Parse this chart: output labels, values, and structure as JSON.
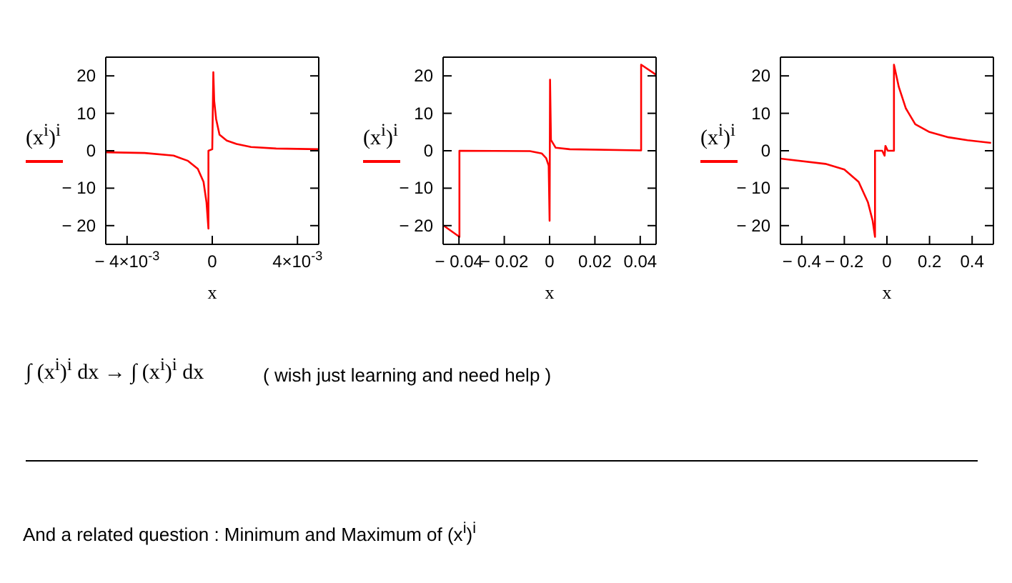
{
  "chart_data": [
    {
      "type": "line",
      "ylabel": "(x$^{i}$)$^{i}$",
      "xlabel": "x",
      "marker": "none",
      "xlim": [
        -0.005,
        0.005
      ],
      "ylim": [
        -25,
        25
      ],
      "xticks": [
        {
          "value": -0.004,
          "label": "− 4×10$^{-3}$"
        },
        0,
        {
          "value": 0.004,
          "label": "4×10$^{-3}$"
        }
      ],
      "yticks": [
        -20,
        -10,
        0,
        10,
        20
      ],
      "series": [
        {
          "color": "#ff0000",
          "x": [
            -0.005,
            -0.00318,
            -0.00182,
            -0.00114,
            -0.00068,
            -0.00041,
            -0.00027,
            -0.00018,
            -0.00018,
            0,
            5e-05,
            9e-05,
            0.00018,
            0.00034,
            0.00068,
            0.00114,
            0.00182,
            0.003,
            0.005
          ],
          "values": [
            -0.4,
            -0.6,
            -1.3,
            -2.7,
            -4.8,
            -8.3,
            -13.8,
            -20.8,
            0,
            0.4,
            21,
            13.4,
            8.5,
            4.3,
            2.7,
            1.8,
            1.0,
            0.6,
            0.4
          ]
        }
      ]
    },
    {
      "type": "line",
      "ylabel": "(x$^{i}$)$^{i}$",
      "xlabel": "x",
      "marker": "none",
      "xlim": [
        -0.047,
        0.047
      ],
      "ylim": [
        -25,
        25
      ],
      "xticks": [
        {
          "value": -0.04,
          "label": "− 0.04"
        },
        {
          "value": -0.02,
          "label": "− 0.02"
        },
        0,
        0.02,
        0.04
      ],
      "yticks": [
        -20,
        -10,
        0,
        10,
        20
      ],
      "series": [
        {
          "color": "#ff0000",
          "x": [
            -0.047,
            -0.0398,
            -0.0398,
            -0.0087,
            -0.0035,
            -0.0015,
            -0.0004,
            0,
            0.0002,
            0.0006,
            0.0027,
            0.0089,
            0.0404,
            0.0404,
            0.047
          ],
          "values": [
            -19.9,
            -23,
            0,
            -0.1,
            -0.7,
            -2,
            -4,
            -18.7,
            19,
            2.9,
            0.8,
            0.4,
            0.1,
            23,
            20.3
          ]
        }
      ]
    },
    {
      "type": "line",
      "ylabel": "(x$^{i}$)$^{i}$",
      "xlabel": "x",
      "marker": "none",
      "xlim": [
        -0.5,
        0.5
      ],
      "ylim": [
        -25,
        25
      ],
      "xticks": [
        {
          "value": -0.4,
          "label": "− 0.4"
        },
        {
          "value": -0.2,
          "label": "− 0.2"
        },
        0,
        0.2,
        0.4
      ],
      "yticks": [
        -20,
        -10,
        0,
        10,
        20
      ],
      "series": [
        {
          "color": "#ff0000",
          "x": [
            -0.5,
            -0.289,
            -0.2,
            -0.133,
            -0.089,
            -0.067,
            -0.056,
            -0.056,
            -0.022,
            -0.011,
            -0.007,
            0.004,
            0.033,
            0.033,
            0.056,
            0.089,
            0.133,
            0.2,
            0.289,
            0.378,
            0.489
          ],
          "values": [
            -2.1,
            -3.5,
            -5,
            -8.3,
            -13.8,
            -18.7,
            -23,
            0,
            0,
            -1.3,
            1.3,
            0,
            0,
            23,
            17,
            11.3,
            7.1,
            5,
            3.6,
            2.8,
            2.1
          ]
        }
      ]
    },
    {
      "type": "other",
      "annotations": [
        "∫ (x$^{i}$)$^{i}$ dx → ∫ (x$^{i}$)$^{i}$ dx",
        "( wish just learning and need help )",
        "And a related question : Minimum and Maximum of (x$^{i}$)$^{i}$"
      ]
    }
  ]
}
